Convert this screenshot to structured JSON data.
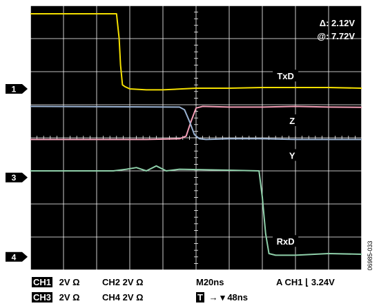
{
  "chart_data": {
    "type": "line",
    "title": "",
    "xlabel": "",
    "ylabel": "",
    "grid": true,
    "x_divisions": 10,
    "y_divisions": 8,
    "x_units": "divisions",
    "y_units": "divisions",
    "readout": {
      "delta": "Δ: 2.12V",
      "at": "@: 7.72V"
    },
    "series": [
      {
        "name": "TxD",
        "color": "#f5e000",
        "x": [
          0,
          2.6,
          2.68,
          2.72,
          2.78,
          2.85,
          3.0,
          3.5,
          4.0,
          5.0,
          6.0,
          7.0,
          8.0,
          9.0,
          10.0
        ],
        "y": [
          7.75,
          7.75,
          7.0,
          6.2,
          5.6,
          5.55,
          5.48,
          5.45,
          5.45,
          5.5,
          5.5,
          5.52,
          5.52,
          5.52,
          5.5
        ]
      },
      {
        "name": "Z",
        "color": "#f4a0b8",
        "x": [
          0,
          3.5,
          4.5,
          4.7,
          4.85,
          5.0,
          5.2,
          6.0,
          7.0,
          8.0,
          9.0,
          10.0
        ],
        "y": [
          3.95,
          3.95,
          3.97,
          4.05,
          4.5,
          4.9,
          4.95,
          4.93,
          4.93,
          4.95,
          4.93,
          4.92
        ]
      },
      {
        "name": "Y",
        "color": "#9ab2d2",
        "x": [
          0,
          4.5,
          4.65,
          4.8,
          4.95,
          5.1,
          5.3,
          6.0,
          7.0,
          8.0,
          9.0,
          10.0
        ],
        "y": [
          4.95,
          4.93,
          4.85,
          4.5,
          4.1,
          3.97,
          3.95,
          3.97,
          3.97,
          3.95,
          3.95,
          3.95
        ]
      },
      {
        "name": "RxD",
        "color": "#8fd0aa",
        "x": [
          0,
          2.5,
          2.9,
          3.2,
          3.5,
          3.8,
          4.1,
          4.5,
          6.0,
          6.9,
          7.0,
          7.1,
          7.2,
          7.4,
          8.0,
          9.0,
          10.0
        ],
        "y": [
          3.0,
          3.0,
          3.05,
          3.1,
          3.0,
          3.15,
          3.0,
          3.05,
          3.02,
          3.0,
          2.2,
          1.1,
          0.5,
          0.45,
          0.45,
          0.5,
          0.48
        ]
      }
    ],
    "channel_markers": [
      {
        "label": "1",
        "level": 5.48
      },
      {
        "label": "3",
        "level": 2.8
      },
      {
        "label": "4",
        "level": 0.4
      }
    ],
    "trace_labels": [
      {
        "text": "TxD",
        "x": 7.7,
        "y": 5.85
      },
      {
        "text": "Z",
        "x": 7.9,
        "y": 4.5
      },
      {
        "text": "Y",
        "x": 7.9,
        "y": 3.45
      },
      {
        "text": "RxD",
        "x": 7.7,
        "y": 0.85
      }
    ],
    "trigger_level": 7.75
  },
  "footer": {
    "row1": {
      "ch1_box": "CH1",
      "ch1_val": "2V  Ω",
      "ch2": "CH2  2V  Ω",
      "timebase": "M20ns",
      "trigger": "A  CH1  ⌊  3.24V"
    },
    "row2": {
      "ch3_box": "CH3",
      "ch3_val": "2V  Ω",
      "ch4": "CH4  2V  Ω",
      "t_box": "T",
      "t_val": "→ ▾ 48ns"
    }
  },
  "figure_id": "06985-033"
}
